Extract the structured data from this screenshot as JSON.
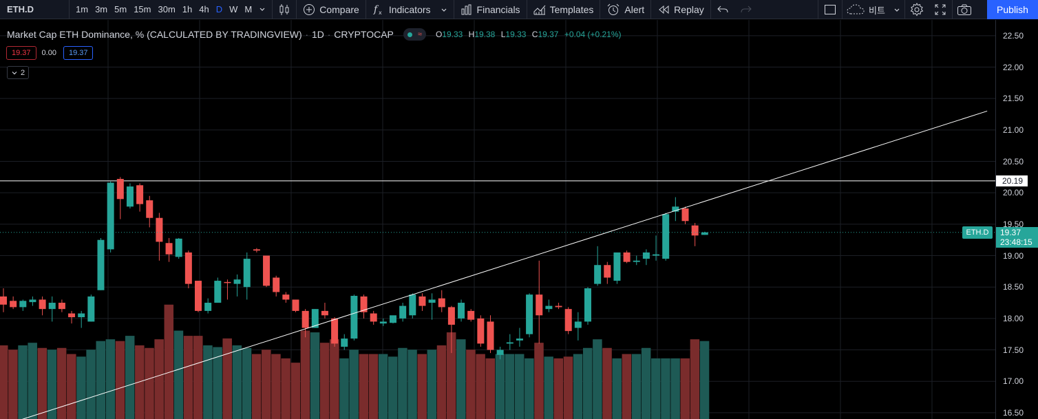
{
  "toolbar": {
    "symbol": "ETH.D",
    "intervals": [
      "1m",
      "3m",
      "5m",
      "15m",
      "30m",
      "1h",
      "4h",
      "D",
      "W",
      "M"
    ],
    "active_interval": "D",
    "compare": "Compare",
    "indicators": "Indicators",
    "financials": "Financials",
    "templates": "Templates",
    "alert": "Alert",
    "replay": "Replay",
    "layout_name": "비트",
    "publish": "Publish"
  },
  "legend": {
    "title": "Market Cap ETH Dominance, % (CALCULATED BY TRADINGVIEW)",
    "timeframe": "1D",
    "exchange": "CRYPTOCAP",
    "o_label": "O",
    "o": "19.33",
    "h_label": "H",
    "h": "19.38",
    "l_label": "L",
    "l": "19.33",
    "c_label": "C",
    "c": "19.37",
    "change": "+0.04 (+0.21%)",
    "bid": "19.37",
    "spread": "0.00",
    "ask": "19.37",
    "collapsed_count": "2"
  },
  "price_scale": {
    "ticks": [
      "22.50",
      "22.00",
      "21.50",
      "21.00",
      "20.50",
      "20.00",
      "19.50",
      "19.00",
      "18.50",
      "18.00",
      "17.50",
      "17.00",
      "16.50"
    ],
    "horizontal_line": "20.19",
    "current_symbol": "ETH.D",
    "current_price": "19.37",
    "countdown": "23:48:15"
  },
  "colors": {
    "up": "#26a69a",
    "down": "#ef5350",
    "vol_up": "#1e5a55",
    "vol_down": "#7a2c2c",
    "accent": "#2962ff"
  },
  "chart_data": {
    "type": "candlestick",
    "y_range": [
      16.4,
      22.75
    ],
    "horizontal_line": 20.19,
    "trendline": [
      [
        0,
        16.3
      ],
      [
        101,
        21.3
      ]
    ],
    "candles": [
      {
        "o": 18.35,
        "h": 18.48,
        "l": 18.1,
        "c": 18.22,
        "v": 0.85
      },
      {
        "o": 18.28,
        "h": 18.35,
        "l": 18.15,
        "c": 18.18,
        "v": 0.8
      },
      {
        "o": 18.18,
        "h": 18.3,
        "l": 18.12,
        "c": 18.28,
        "v": 0.85
      },
      {
        "o": 18.26,
        "h": 18.35,
        "l": 18.2,
        "c": 18.3,
        "v": 0.88
      },
      {
        "o": 18.3,
        "h": 18.35,
        "l": 18.05,
        "c": 18.15,
        "v": 0.82
      },
      {
        "o": 18.15,
        "h": 18.35,
        "l": 17.95,
        "c": 18.25,
        "v": 0.8
      },
      {
        "o": 18.25,
        "h": 18.3,
        "l": 18.1,
        "c": 18.15,
        "v": 0.82
      },
      {
        "o": 18.08,
        "h": 18.12,
        "l": 17.92,
        "c": 18.02,
        "v": 0.75
      },
      {
        "o": 18.02,
        "h": 18.12,
        "l": 17.85,
        "c": 18.08,
        "v": 0.72
      },
      {
        "o": 17.95,
        "h": 18.38,
        "l": 17.95,
        "c": 18.35,
        "v": 0.8
      },
      {
        "o": 18.45,
        "h": 19.28,
        "l": 18.45,
        "c": 19.25,
        "v": 0.9
      },
      {
        "o": 19.1,
        "h": 20.18,
        "l": 19.05,
        "c": 20.16,
        "v": 0.92
      },
      {
        "o": 20.22,
        "h": 20.25,
        "l": 19.58,
        "c": 19.9,
        "v": 0.9
      },
      {
        "o": 19.78,
        "h": 20.15,
        "l": 19.75,
        "c": 20.1,
        "v": 0.96
      },
      {
        "o": 20.12,
        "h": 20.15,
        "l": 19.7,
        "c": 19.82,
        "v": 0.85
      },
      {
        "o": 19.88,
        "h": 19.95,
        "l": 19.45,
        "c": 19.6,
        "v": 0.82
      },
      {
        "o": 19.6,
        "h": 19.68,
        "l": 18.92,
        "c": 19.22,
        "v": 0.92
      },
      {
        "o": 19.2,
        "h": 19.28,
        "l": 18.9,
        "c": 19.02,
        "v": 1.32
      },
      {
        "o": 18.98,
        "h": 19.28,
        "l": 18.95,
        "c": 19.27,
        "v": 1.02
      },
      {
        "o": 19.05,
        "h": 19.08,
        "l": 18.48,
        "c": 18.55,
        "v": 0.96
      },
      {
        "o": 18.6,
        "h": 18.6,
        "l": 18.1,
        "c": 18.12,
        "v": 0.96
      },
      {
        "o": 18.12,
        "h": 18.32,
        "l": 18.08,
        "c": 18.25,
        "v": 0.85
      },
      {
        "o": 18.25,
        "h": 18.65,
        "l": 18.25,
        "c": 18.6,
        "v": 0.83
      },
      {
        "o": 18.58,
        "h": 18.62,
        "l": 18.3,
        "c": 18.57,
        "v": 0.93
      },
      {
        "o": 18.55,
        "h": 18.7,
        "l": 18.35,
        "c": 18.62,
        "v": 0.85
      },
      {
        "o": 18.5,
        "h": 19.05,
        "l": 18.3,
        "c": 18.95,
        "v": 0.82
      },
      {
        "o": 19.1,
        "h": 19.12,
        "l": 19.05,
        "c": 19.08,
        "v": 0.75
      },
      {
        "o": 19.0,
        "h": 19.0,
        "l": 18.5,
        "c": 18.52,
        "v": 0.8
      },
      {
        "o": 18.65,
        "h": 18.68,
        "l": 18.35,
        "c": 18.42,
        "v": 0.75
      },
      {
        "o": 18.38,
        "h": 18.42,
        "l": 18.25,
        "c": 18.3,
        "v": 0.7
      },
      {
        "o": 18.3,
        "h": 18.3,
        "l": 18.1,
        "c": 18.12,
        "v": 0.65
      },
      {
        "o": 18.12,
        "h": 18.15,
        "l": 17.7,
        "c": 17.85,
        "v": 1.02
      },
      {
        "o": 17.85,
        "h": 18.15,
        "l": 17.85,
        "c": 18.15,
        "v": 1.0
      },
      {
        "o": 18.12,
        "h": 18.25,
        "l": 18.0,
        "c": 18.05,
        "v": 0.88
      },
      {
        "o": 18.0,
        "h": 18.02,
        "l": 17.55,
        "c": 17.6,
        "v": 0.92
      },
      {
        "o": 17.55,
        "h": 17.75,
        "l": 17.5,
        "c": 17.68,
        "v": 0.7
      },
      {
        "o": 17.68,
        "h": 18.38,
        "l": 17.65,
        "c": 18.36,
        "v": 0.8
      },
      {
        "o": 18.35,
        "h": 18.38,
        "l": 18.0,
        "c": 18.1,
        "v": 0.75
      },
      {
        "o": 18.08,
        "h": 18.12,
        "l": 17.9,
        "c": 17.95,
        "v": 0.75
      },
      {
        "o": 17.92,
        "h": 18.0,
        "l": 17.88,
        "c": 17.95,
        "v": 0.75
      },
      {
        "o": 17.93,
        "h": 18.0,
        "l": 17.92,
        "c": 18.05,
        "v": 0.72
      },
      {
        "o": 18.0,
        "h": 18.25,
        "l": 17.95,
        "c": 18.2,
        "v": 0.82
      },
      {
        "o": 18.05,
        "h": 18.4,
        "l": 18.0,
        "c": 18.38,
        "v": 0.8
      },
      {
        "o": 18.35,
        "h": 18.4,
        "l": 18.12,
        "c": 18.2,
        "v": 0.75
      },
      {
        "o": 18.25,
        "h": 18.4,
        "l": 17.98,
        "c": 18.3,
        "v": 0.8
      },
      {
        "o": 18.32,
        "h": 18.45,
        "l": 18.1,
        "c": 18.18,
        "v": 0.85
      },
      {
        "o": 18.18,
        "h": 18.2,
        "l": 17.45,
        "c": 17.9,
        "v": 1.0
      },
      {
        "o": 18.0,
        "h": 18.3,
        "l": 17.95,
        "c": 18.25,
        "v": 0.92
      },
      {
        "o": 18.12,
        "h": 18.15,
        "l": 17.95,
        "c": 17.98,
        "v": 0.8
      },
      {
        "o": 18.0,
        "h": 18.05,
        "l": 17.55,
        "c": 17.6,
        "v": 0.75
      },
      {
        "o": 17.95,
        "h": 18.05,
        "l": 17.45,
        "c": 17.5,
        "v": 0.7
      },
      {
        "o": 17.42,
        "h": 17.55,
        "l": 17.35,
        "c": 17.5,
        "v": 0.75
      },
      {
        "o": 17.6,
        "h": 17.75,
        "l": 17.5,
        "c": 17.62,
        "v": 0.75
      },
      {
        "o": 17.65,
        "h": 17.85,
        "l": 17.55,
        "c": 17.68,
        "v": 0.75
      },
      {
        "o": 17.75,
        "h": 18.4,
        "l": 17.7,
        "c": 18.38,
        "v": 0.7
      },
      {
        "o": 18.38,
        "h": 18.92,
        "l": 17.6,
        "c": 18.05,
        "v": 0.88
      },
      {
        "o": 18.15,
        "h": 18.3,
        "l": 18.1,
        "c": 18.2,
        "v": 0.72
      },
      {
        "o": 18.2,
        "h": 18.25,
        "l": 18.15,
        "c": 18.18,
        "v": 0.7
      },
      {
        "o": 18.15,
        "h": 18.18,
        "l": 17.75,
        "c": 17.8,
        "v": 0.72
      },
      {
        "o": 17.85,
        "h": 18.1,
        "l": 17.65,
        "c": 17.95,
        "v": 0.75
      },
      {
        "o": 17.95,
        "h": 18.5,
        "l": 17.9,
        "c": 18.48,
        "v": 0.82
      },
      {
        "o": 18.55,
        "h": 19.15,
        "l": 18.52,
        "c": 18.85,
        "v": 0.92
      },
      {
        "o": 18.85,
        "h": 18.9,
        "l": 18.55,
        "c": 18.65,
        "v": 0.82
      },
      {
        "o": 18.6,
        "h": 19.05,
        "l": 18.55,
        "c": 19.05,
        "v": 0.7
      },
      {
        "o": 19.05,
        "h": 19.08,
        "l": 18.88,
        "c": 18.9,
        "v": 0.75
      },
      {
        "o": 18.9,
        "h": 19.0,
        "l": 18.85,
        "c": 18.92,
        "v": 0.75
      },
      {
        "o": 18.95,
        "h": 19.1,
        "l": 18.85,
        "c": 19.05,
        "v": 0.82
      },
      {
        "o": 19.0,
        "h": 19.32,
        "l": 18.92,
        "c": 19.02,
        "v": 0.7
      },
      {
        "o": 18.95,
        "h": 19.68,
        "l": 18.92,
        "c": 19.66,
        "v": 0.7
      },
      {
        "o": 19.7,
        "h": 19.93,
        "l": 19.55,
        "c": 19.78,
        "v": 0.7
      },
      {
        "o": 19.75,
        "h": 19.78,
        "l": 19.5,
        "c": 19.55,
        "v": 0.7
      },
      {
        "o": 19.48,
        "h": 19.52,
        "l": 19.15,
        "c": 19.32,
        "v": 0.92
      },
      {
        "o": 19.33,
        "h": 19.38,
        "l": 19.33,
        "c": 19.37,
        "v": 0.9
      }
    ]
  }
}
